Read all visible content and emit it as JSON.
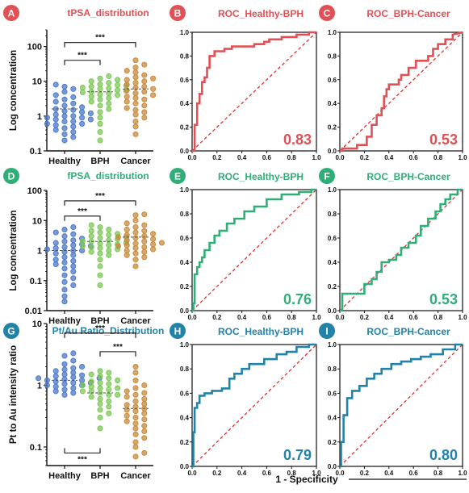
{
  "colors": {
    "red": "#e05055",
    "green": "#2fae78",
    "teal": "#2283a8",
    "healthy": "#4a78c9",
    "bph": "#7cc756",
    "cancer": "#c8893a",
    "diagonal": "#e03030"
  },
  "figure": {
    "x_caption": "1 - Specificity"
  },
  "chart_data": [
    {
      "panel": "A",
      "type": "scatter",
      "title": "tPSA_distribution",
      "title_color": "red",
      "ylabel": "Log concentration",
      "yscale": "log",
      "ylim": [
        0.1,
        300
      ],
      "yticks": [
        0.1,
        1,
        10,
        100
      ],
      "ytick_labels": [
        "0.1",
        "1",
        "10",
        "100"
      ],
      "categories": [
        "Healthy",
        "BPH",
        "Cancer"
      ],
      "series": [
        {
          "name": "Healthy",
          "values": [
            0.2,
            0.25,
            0.3,
            0.35,
            0.4,
            0.45,
            0.5,
            0.55,
            0.6,
            0.6,
            0.7,
            0.7,
            0.8,
            0.8,
            0.9,
            0.9,
            1.0,
            1.0,
            1.1,
            1.2,
            1.3,
            1.4,
            1.5,
            1.6,
            1.8,
            2.0,
            2.3,
            2.6,
            3.0,
            3.5,
            4.0,
            5.0,
            6.0,
            7.0,
            8.0
          ],
          "mean": 1.6
        },
        {
          "name": "BPH",
          "values": [
            0.2,
            0.35,
            0.6,
            0.9,
            1.3,
            1.6,
            2.0,
            2.3,
            2.6,
            3.0,
            3.3,
            3.6,
            4.0,
            4.2,
            4.5,
            4.8,
            5.0,
            5.3,
            5.6,
            6.0,
            6.3,
            6.6,
            7.0,
            7.4,
            7.8,
            8.2,
            9.0,
            10.0,
            11.0,
            12.0,
            14.0
          ],
          "mean": 5.0
        },
        {
          "name": "Cancer",
          "values": [
            0.3,
            0.5,
            0.7,
            0.9,
            1.1,
            1.3,
            1.5,
            1.7,
            2.0,
            2.3,
            2.6,
            3.0,
            3.3,
            3.6,
            4.0,
            4.5,
            5.0,
            5.5,
            6.0,
            6.5,
            7.0,
            8.0,
            9.0,
            10.0,
            11.0,
            12.0,
            13.0,
            15.0,
            18.0,
            20.0,
            25.0,
            30.0,
            40.0
          ],
          "mean": 6.0
        }
      ],
      "brackets": [
        {
          "from": "Healthy",
          "to": "BPH",
          "label": "***",
          "y": 40,
          "side": "top"
        },
        {
          "from": "Healthy",
          "to": "Cancer",
          "label": "***",
          "y": 130,
          "side": "top"
        }
      ]
    },
    {
      "panel": "B",
      "type": "line",
      "title": "ROC_Healthy-BPH",
      "title_color": "red",
      "auc": "0.83",
      "xlim": [
        0,
        1
      ],
      "ylim": [
        0,
        1
      ],
      "x": [
        0,
        0.02,
        0.02,
        0.04,
        0.04,
        0.06,
        0.06,
        0.08,
        0.08,
        0.1,
        0.1,
        0.12,
        0.12,
        0.14,
        0.14,
        0.18,
        0.18,
        0.26,
        0.26,
        0.32,
        0.32,
        0.5,
        0.5,
        0.58,
        0.58,
        0.62,
        0.62,
        0.72,
        0.72,
        0.84,
        0.84,
        0.94,
        0.94,
        1.0
      ],
      "y": [
        0,
        0,
        0.22,
        0.22,
        0.4,
        0.4,
        0.48,
        0.48,
        0.58,
        0.58,
        0.62,
        0.62,
        0.7,
        0.7,
        0.8,
        0.8,
        0.84,
        0.84,
        0.86,
        0.86,
        0.88,
        0.88,
        0.9,
        0.9,
        0.92,
        0.92,
        0.94,
        0.94,
        0.96,
        0.96,
        0.98,
        0.98,
        1.0,
        1.0
      ]
    },
    {
      "panel": "C",
      "type": "line",
      "title": "ROC_BPH-Cancer",
      "title_color": "red",
      "auc": "0.53",
      "xlim": [
        0,
        1
      ],
      "ylim": [
        0,
        1
      ],
      "x": [
        0,
        0.02,
        0.02,
        0.14,
        0.14,
        0.22,
        0.22,
        0.26,
        0.26,
        0.3,
        0.3,
        0.34,
        0.34,
        0.36,
        0.36,
        0.38,
        0.38,
        0.4,
        0.4,
        0.48,
        0.48,
        0.5,
        0.5,
        0.56,
        0.56,
        0.62,
        0.62,
        0.72,
        0.72,
        0.76,
        0.76,
        0.8,
        0.8,
        0.86,
        0.86,
        0.92,
        0.92,
        1.0
      ],
      "y": [
        0,
        0,
        0.02,
        0.02,
        0.05,
        0.05,
        0.12,
        0.12,
        0.22,
        0.22,
        0.3,
        0.3,
        0.36,
        0.36,
        0.46,
        0.46,
        0.52,
        0.52,
        0.56,
        0.56,
        0.6,
        0.6,
        0.64,
        0.64,
        0.7,
        0.7,
        0.76,
        0.76,
        0.8,
        0.8,
        0.86,
        0.86,
        0.9,
        0.9,
        0.94,
        0.94,
        0.98,
        1.0
      ]
    },
    {
      "panel": "D",
      "type": "scatter",
      "title": "fPSA_distribution",
      "title_color": "green",
      "ylabel": "Log concentration",
      "yscale": "log",
      "ylim": [
        0.01,
        100
      ],
      "yticks": [
        0.01,
        0.1,
        1,
        10,
        100
      ],
      "ytick_labels": [
        "0.01",
        "0.1",
        "1",
        "10",
        "100"
      ],
      "categories": [
        "Healthy",
        "BPH",
        "Cancer"
      ],
      "series": [
        {
          "name": "Healthy",
          "values": [
            0.02,
            0.03,
            0.05,
            0.07,
            0.09,
            0.12,
            0.15,
            0.2,
            0.25,
            0.3,
            0.35,
            0.4,
            0.45,
            0.5,
            0.6,
            0.7,
            0.8,
            0.9,
            1.0,
            1.0,
            1.1,
            1.2,
            1.3,
            1.4,
            1.5,
            1.6,
            1.8,
            2.0,
            2.2,
            2.5,
            3.0,
            3.5,
            4.0,
            5.0,
            6.0
          ],
          "mean": 1.0
        },
        {
          "name": "BPH",
          "values": [
            0.07,
            0.15,
            0.3,
            0.5,
            0.7,
            0.8,
            0.9,
            1.0,
            1.1,
            1.2,
            1.3,
            1.4,
            1.5,
            1.6,
            1.7,
            1.8,
            2.0,
            2.1,
            2.2,
            2.4,
            2.6,
            2.8,
            3.0,
            3.3,
            3.6,
            4.0,
            4.5,
            5.0,
            6.0,
            7.0
          ],
          "mean": 2.0
        },
        {
          "name": "Cancer",
          "values": [
            0.3,
            0.5,
            0.6,
            0.7,
            0.8,
            0.9,
            1.0,
            1.1,
            1.2,
            1.3,
            1.4,
            1.5,
            1.6,
            1.7,
            1.8,
            2.0,
            2.2,
            2.4,
            2.6,
            2.8,
            3.0,
            3.3,
            3.6,
            4.0,
            4.5,
            5.0,
            6.0,
            7.0,
            8.0,
            10.0,
            15.0,
            16.0
          ],
          "mean": 2.8
        }
      ],
      "brackets": [
        {
          "from": "Healthy",
          "to": "BPH",
          "label": "***",
          "y": 14,
          "side": "top"
        },
        {
          "from": "Healthy",
          "to": "Cancer",
          "label": "***",
          "y": 45,
          "side": "top"
        }
      ]
    },
    {
      "panel": "E",
      "type": "line",
      "title": "ROC_Healthy-BPH",
      "title_color": "green",
      "auc": "0.76",
      "xlim": [
        0,
        1
      ],
      "ylim": [
        0,
        1
      ],
      "x": [
        0,
        0.01,
        0.01,
        0.02,
        0.02,
        0.04,
        0.04,
        0.06,
        0.06,
        0.08,
        0.08,
        0.1,
        0.1,
        0.14,
        0.14,
        0.18,
        0.18,
        0.22,
        0.22,
        0.28,
        0.28,
        0.34,
        0.34,
        0.42,
        0.42,
        0.5,
        0.5,
        0.6,
        0.6,
        0.72,
        0.72,
        0.86,
        0.86,
        0.96,
        0.96,
        1.0
      ],
      "y": [
        0,
        0,
        0.06,
        0.06,
        0.3,
        0.3,
        0.36,
        0.36,
        0.4,
        0.4,
        0.44,
        0.44,
        0.5,
        0.5,
        0.56,
        0.56,
        0.62,
        0.62,
        0.66,
        0.66,
        0.72,
        0.72,
        0.76,
        0.76,
        0.82,
        0.82,
        0.86,
        0.86,
        0.92,
        0.92,
        0.96,
        0.96,
        0.98,
        0.98,
        1.0,
        1.0
      ]
    },
    {
      "panel": "F",
      "type": "line",
      "title": "ROC_BPH-Cancer",
      "title_color": "green",
      "auc": "0.53",
      "xlim": [
        0,
        1
      ],
      "ylim": [
        0,
        1
      ],
      "x": [
        0,
        0.02,
        0.02,
        0.12,
        0.12,
        0.2,
        0.2,
        0.26,
        0.26,
        0.3,
        0.3,
        0.34,
        0.34,
        0.4,
        0.4,
        0.46,
        0.46,
        0.5,
        0.5,
        0.56,
        0.56,
        0.62,
        0.62,
        0.66,
        0.66,
        0.72,
        0.72,
        0.78,
        0.78,
        0.82,
        0.82,
        0.86,
        0.86,
        0.9,
        0.9,
        0.96,
        0.96,
        1.0
      ],
      "y": [
        0,
        0,
        0.14,
        0.14,
        0.14,
        0.14,
        0.22,
        0.22,
        0.26,
        0.26,
        0.32,
        0.32,
        0.4,
        0.4,
        0.42,
        0.42,
        0.46,
        0.46,
        0.52,
        0.52,
        0.56,
        0.56,
        0.62,
        0.62,
        0.7,
        0.7,
        0.76,
        0.76,
        0.82,
        0.82,
        0.88,
        0.88,
        0.92,
        0.92,
        0.96,
        0.96,
        1.0,
        1.0
      ]
    },
    {
      "panel": "G",
      "type": "scatter",
      "title": "Pt/Au Ratio_Distribution",
      "title_color": "teal",
      "ylabel": "Pt to Au intensity ratio",
      "yscale": "log",
      "ylim": [
        0.05,
        10
      ],
      "yticks": [
        0.1,
        1,
        10
      ],
      "ytick_labels": [
        "0.1",
        "1",
        "10"
      ],
      "categories": [
        "Healthy",
        "BPH",
        "Cancer"
      ],
      "series": [
        {
          "name": "Healthy",
          "values": [
            0.7,
            0.75,
            0.8,
            0.85,
            0.9,
            0.95,
            1.0,
            1.0,
            1.05,
            1.1,
            1.1,
            1.15,
            1.2,
            1.2,
            1.25,
            1.3,
            1.3,
            1.35,
            1.4,
            1.45,
            1.5,
            1.6,
            1.7,
            1.8,
            1.9,
            2.0,
            2.2,
            2.5,
            3.0,
            3.3
          ],
          "mean": 1.2
        },
        {
          "name": "BPH",
          "values": [
            0.2,
            0.3,
            0.35,
            0.4,
            0.45,
            0.5,
            0.55,
            0.6,
            0.65,
            0.7,
            0.7,
            0.75,
            0.8,
            0.8,
            0.85,
            0.9,
            0.9,
            0.95,
            1.0,
            1.05,
            1.1,
            1.15,
            1.2,
            1.3,
            1.4,
            1.5,
            1.6,
            1.7
          ],
          "mean": 0.75
        },
        {
          "name": "Cancer",
          "values": [
            0.07,
            0.08,
            0.1,
            0.12,
            0.14,
            0.16,
            0.18,
            0.2,
            0.22,
            0.24,
            0.26,
            0.28,
            0.3,
            0.32,
            0.35,
            0.38,
            0.4,
            0.42,
            0.45,
            0.48,
            0.5,
            0.55,
            0.6,
            0.65,
            0.7,
            0.75,
            0.8,
            0.9,
            1.0,
            1.2,
            1.6,
            2.0
          ],
          "mean": 0.42
        }
      ],
      "brackets": [
        {
          "from": "Healthy",
          "to": "Cancer",
          "label": "***",
          "y": 7,
          "side": "top"
        },
        {
          "from": "BPH",
          "to": "Cancer",
          "label": "***",
          "y": 3.5,
          "side": "top"
        },
        {
          "from": "Healthy",
          "to": "BPH",
          "label": "***",
          "y": 0.08,
          "side": "bottom"
        }
      ]
    },
    {
      "panel": "H",
      "type": "line",
      "title": "ROC_Healthy-BPH",
      "title_color": "teal",
      "auc": "0.79",
      "xlim": [
        0,
        1
      ],
      "ylim": [
        0,
        1
      ],
      "x": [
        0,
        0.01,
        0.01,
        0.02,
        0.02,
        0.04,
        0.04,
        0.06,
        0.06,
        0.1,
        0.1,
        0.16,
        0.16,
        0.24,
        0.24,
        0.3,
        0.3,
        0.34,
        0.34,
        0.4,
        0.4,
        0.46,
        0.46,
        0.58,
        0.58,
        0.68,
        0.68,
        0.76,
        0.76,
        0.84,
        0.84,
        0.94,
        0.94,
        1.0
      ],
      "y": [
        0,
        0,
        0.28,
        0.28,
        0.48,
        0.48,
        0.52,
        0.52,
        0.58,
        0.58,
        0.6,
        0.6,
        0.62,
        0.62,
        0.64,
        0.64,
        0.72,
        0.72,
        0.76,
        0.76,
        0.8,
        0.8,
        0.84,
        0.84,
        0.88,
        0.88,
        0.92,
        0.92,
        0.94,
        0.94,
        0.98,
        0.98,
        1.0,
        1.0
      ]
    },
    {
      "panel": "I",
      "type": "line",
      "title": "ROC_BPH-Cancer",
      "title_color": "teal",
      "auc": "0.80",
      "xlim": [
        0,
        1
      ],
      "ylim": [
        0,
        1
      ],
      "x": [
        0,
        0.01,
        0.01,
        0.03,
        0.03,
        0.06,
        0.06,
        0.1,
        0.1,
        0.16,
        0.16,
        0.22,
        0.22,
        0.28,
        0.28,
        0.34,
        0.34,
        0.42,
        0.42,
        0.5,
        0.5,
        0.58,
        0.58,
        0.66,
        0.66,
        0.74,
        0.74,
        0.84,
        0.84,
        0.94,
        0.94,
        1.0
      ],
      "y": [
        0,
        0,
        0.2,
        0.2,
        0.42,
        0.42,
        0.56,
        0.56,
        0.62,
        0.62,
        0.66,
        0.66,
        0.72,
        0.72,
        0.76,
        0.76,
        0.8,
        0.8,
        0.84,
        0.84,
        0.86,
        0.86,
        0.88,
        0.88,
        0.9,
        0.9,
        0.92,
        0.92,
        0.96,
        0.96,
        1.0,
        1.0
      ]
    }
  ]
}
